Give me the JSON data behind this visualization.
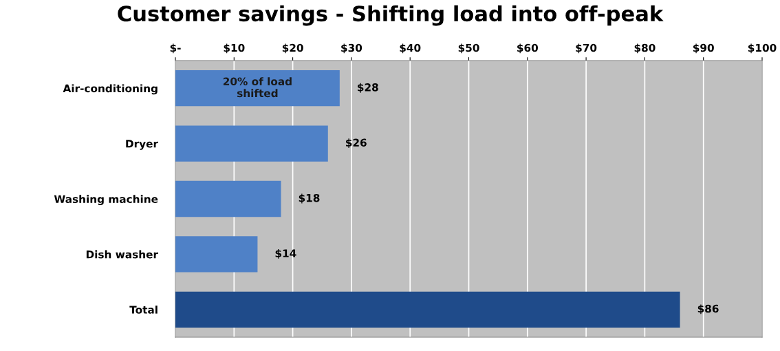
{
  "chart_data": {
    "type": "bar",
    "orientation": "horizontal",
    "title": "Customer savings - Shifting load into off-peak",
    "categories": [
      "Air-conditioning",
      "Dryer",
      "Washing machine",
      "Dish washer",
      "Total"
    ],
    "values": [
      28,
      26,
      18,
      14,
      86
    ],
    "colors": [
      "#4f81c7",
      "#4f81c7",
      "#4f81c7",
      "#4f81c7",
      "#1f4b8a"
    ],
    "value_labels": [
      "$28",
      "$26",
      "$18",
      "$14",
      "$86"
    ],
    "annotations": [
      "20% of load\nshifted"
    ],
    "xlim": [
      0,
      100
    ],
    "xticks": [
      {
        "value": 0,
        "label": "$-"
      },
      {
        "value": 10,
        "label": "$10"
      },
      {
        "value": 20,
        "label": "$20"
      },
      {
        "value": 30,
        "label": "$30"
      },
      {
        "value": 40,
        "label": "$40"
      },
      {
        "value": 50,
        "label": "$50"
      },
      {
        "value": 60,
        "label": "$60"
      },
      {
        "value": 70,
        "label": "$70"
      },
      {
        "value": 80,
        "label": "$80"
      },
      {
        "value": 90,
        "label": "$90"
      },
      {
        "value": 100,
        "label": "$100"
      }
    ],
    "grid": "x"
  }
}
